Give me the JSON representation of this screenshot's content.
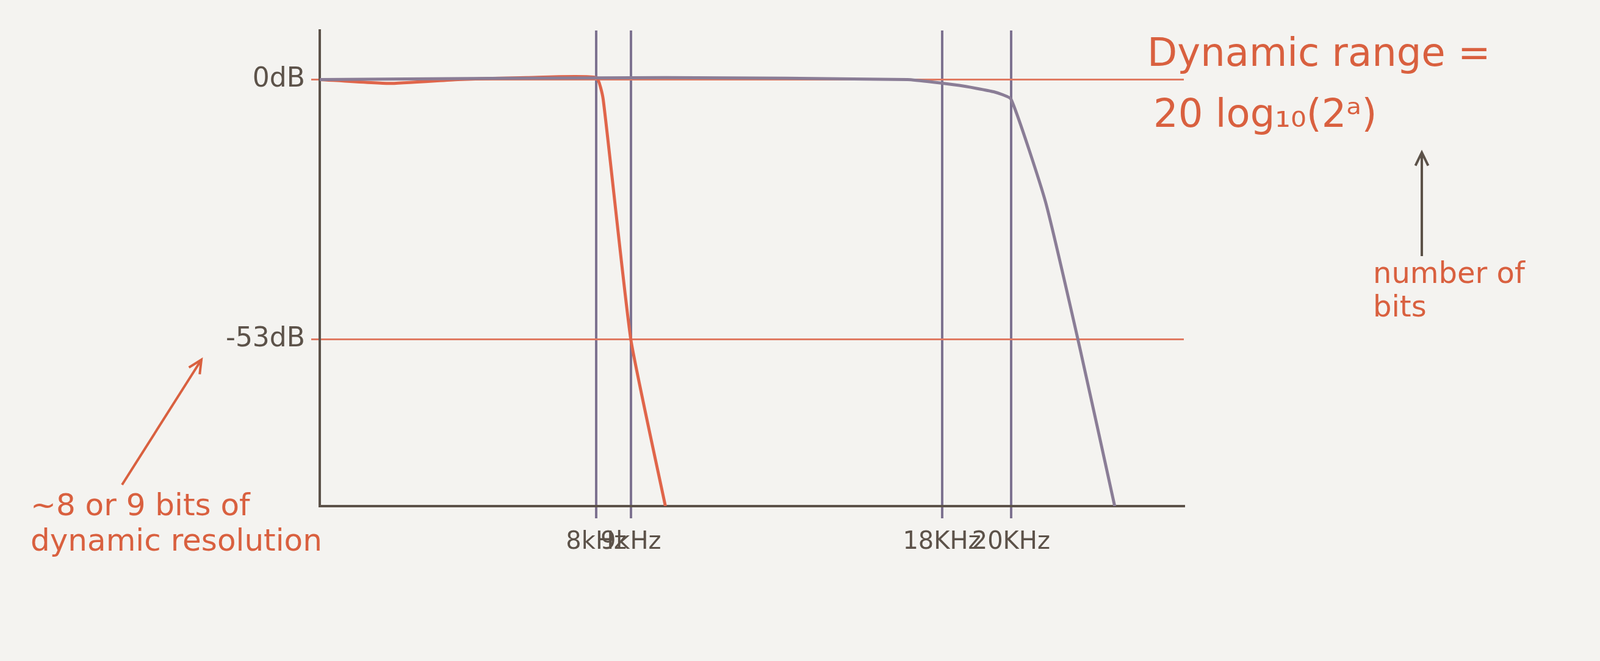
{
  "chart_data": {
    "type": "line",
    "series": [
      {
        "color": "#8a7d96",
        "x": [
          0,
          10,
          17,
          18.5,
          19.5,
          20,
          21,
          22,
          23
        ],
        "values": [
          0,
          0.4,
          0,
          -1.2,
          -2.5,
          -4,
          -25,
          -55,
          -87
        ]
      },
      {
        "color": "#e0654a",
        "x": [
          0,
          2,
          4,
          6,
          8,
          8.2,
          9,
          10
        ],
        "values": [
          0,
          -0.8,
          0,
          0.4,
          0.4,
          -4,
          -53,
          -87
        ]
      }
    ],
    "xlim": [
      0,
      25
    ],
    "xticks": [
      {
        "value": 8,
        "label": "8kHz"
      },
      {
        "value": 9,
        "label": "9kHz"
      },
      {
        "value": 18,
        "label": "18KHz"
      },
      {
        "value": 20,
        "label": "20KHz"
      }
    ],
    "ylim": [
      -87,
      10
    ],
    "yticks": [
      {
        "value": 0,
        "label": "0dB"
      },
      {
        "value": -53,
        "label": "-53dB"
      }
    ],
    "grid": true,
    "annotations": [
      {
        "text": "Dynamic range ="
      },
      {
        "text": "20 log₁₀(2ᵃ)"
      },
      {
        "text": "number of bits"
      },
      {
        "text": "~8 or 9 bits of dynamic resolution"
      }
    ]
  }
}
